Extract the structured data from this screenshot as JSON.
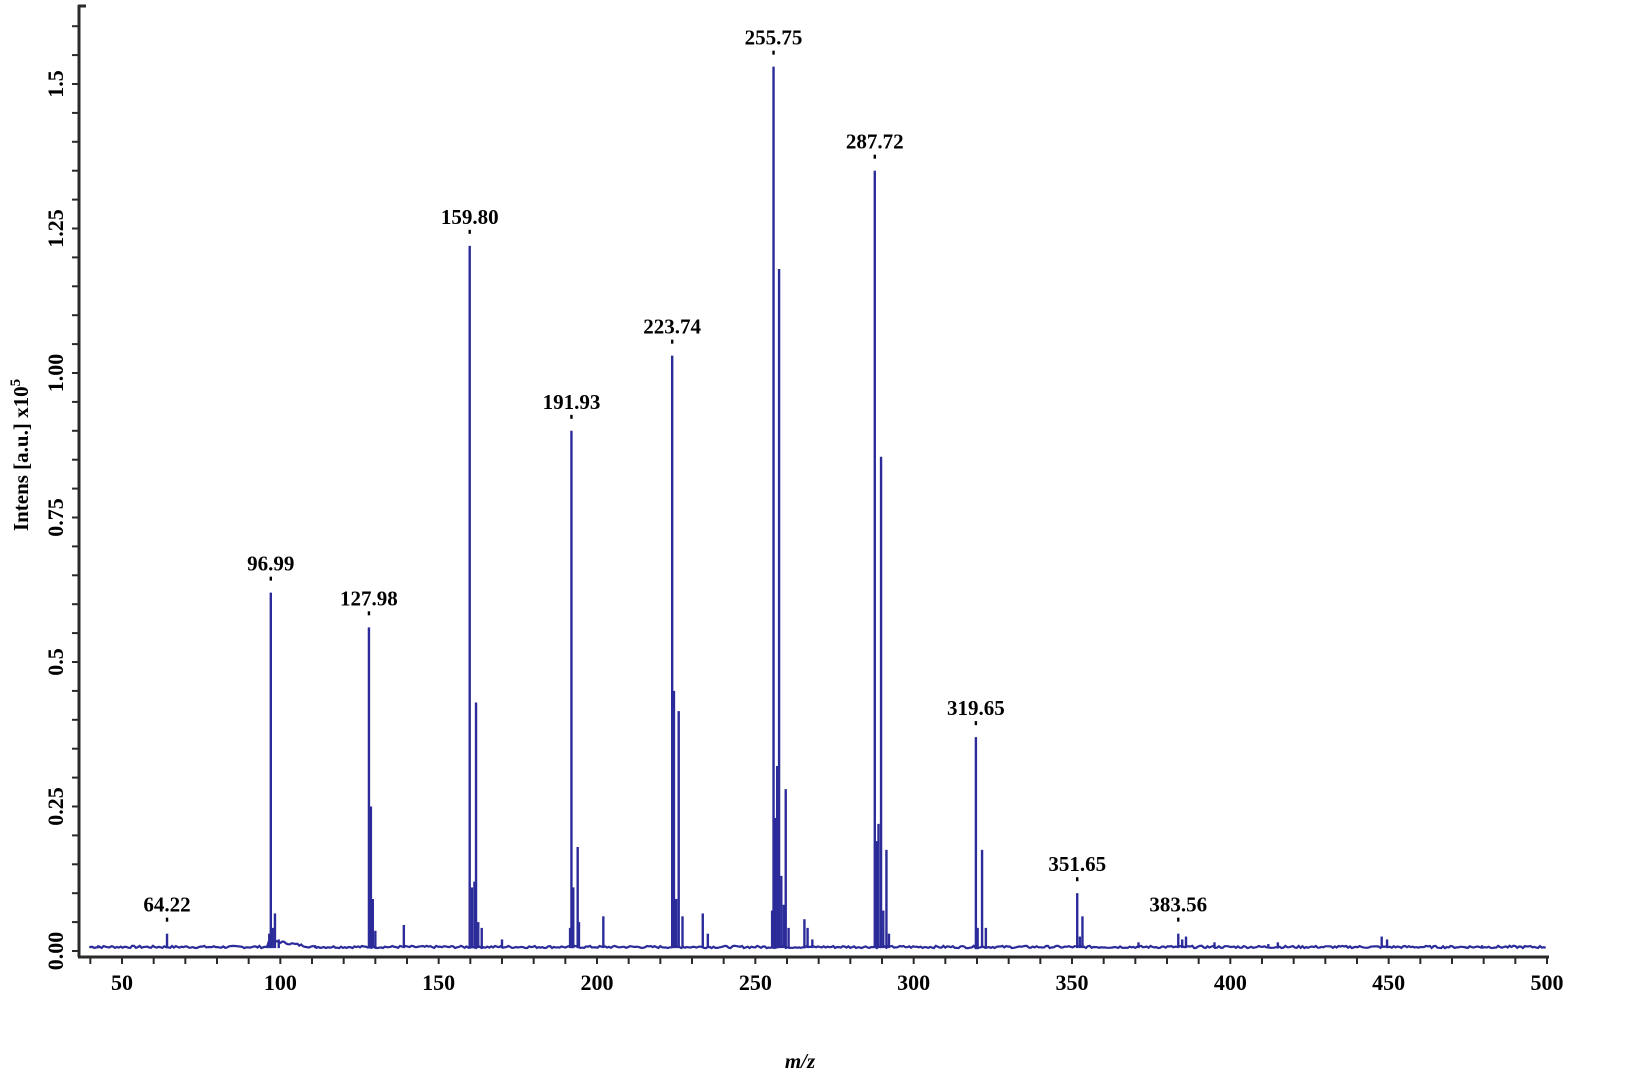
{
  "chart_data": {
    "type": "line",
    "subtype": "mass-spectrum-stick",
    "title": "",
    "xlabel": "m/z",
    "ylabel": "Intens [a.u.] x10",
    "ylabel_superscript": "5",
    "xlim": [
      35.5,
      500
    ],
    "ylim": [
      0,
      1.65
    ],
    "grid": false,
    "legend": null,
    "x_ticks": [
      50,
      100,
      150,
      200,
      250,
      300,
      350,
      400,
      450,
      500
    ],
    "x_tick_labels": [
      "50",
      "100",
      "150",
      "200",
      "250",
      "300",
      "350",
      "400",
      "450",
      "500"
    ],
    "x_minor_step": 10,
    "y_ticks": [
      0,
      0.25,
      0.5,
      0.75,
      1.0,
      1.25,
      1.5
    ],
    "y_tick_labels": [
      "0.00",
      "0.25",
      "0.5",
      "0.75",
      "1.00",
      "1.25",
      "1.5"
    ],
    "y_minor_step": 0.05,
    "series_color": "#2b2b9a",
    "baseline": 0.005,
    "labeled_peaks": [
      {
        "mz": 64.22,
        "label": "64.22",
        "intensity": 0.03
      },
      {
        "mz": 96.99,
        "label": "96.99",
        "intensity": 0.62
      },
      {
        "mz": 127.98,
        "label": "127.98",
        "intensity": 0.56
      },
      {
        "mz": 159.8,
        "label": "159.80",
        "intensity": 1.22
      },
      {
        "mz": 191.93,
        "label": "191.93",
        "intensity": 0.9
      },
      {
        "mz": 223.74,
        "label": "223.74",
        "intensity": 1.03
      },
      {
        "mz": 255.75,
        "label": "255.75",
        "intensity": 1.53
      },
      {
        "mz": 287.72,
        "label": "287.72",
        "intensity": 1.35
      },
      {
        "mz": 319.65,
        "label": "319.65",
        "intensity": 0.37
      },
      {
        "mz": 351.65,
        "label": "351.65",
        "intensity": 0.1
      },
      {
        "mz": 383.56,
        "label": "383.56",
        "intensity": 0.03
      }
    ],
    "other_peaks": [
      {
        "mz": 40.5,
        "intensity": 0.008
      },
      {
        "mz": 42.5,
        "intensity": 0.01
      },
      {
        "mz": 96.5,
        "intensity": 0.03
      },
      {
        "mz": 97.6,
        "intensity": 0.04
      },
      {
        "mz": 98.3,
        "intensity": 0.065
      },
      {
        "mz": 99.5,
        "intensity": 0.02
      },
      {
        "mz": 111,
        "intensity": 0.01
      },
      {
        "mz": 128.6,
        "intensity": 0.25
      },
      {
        "mz": 129.2,
        "intensity": 0.09
      },
      {
        "mz": 130.0,
        "intensity": 0.035
      },
      {
        "mz": 139.0,
        "intensity": 0.045
      },
      {
        "mz": 160.5,
        "intensity": 0.11
      },
      {
        "mz": 161.3,
        "intensity": 0.12
      },
      {
        "mz": 161.8,
        "intensity": 0.43
      },
      {
        "mz": 162.5,
        "intensity": 0.05
      },
      {
        "mz": 163.6,
        "intensity": 0.04
      },
      {
        "mz": 170.0,
        "intensity": 0.02
      },
      {
        "mz": 191.5,
        "intensity": 0.04
      },
      {
        "mz": 192.5,
        "intensity": 0.11
      },
      {
        "mz": 193.9,
        "intensity": 0.18
      },
      {
        "mz": 194.3,
        "intensity": 0.05
      },
      {
        "mz": 202.0,
        "intensity": 0.06
      },
      {
        "mz": 224.3,
        "intensity": 0.45
      },
      {
        "mz": 225.0,
        "intensity": 0.09
      },
      {
        "mz": 225.8,
        "intensity": 0.415
      },
      {
        "mz": 227.0,
        "intensity": 0.06
      },
      {
        "mz": 233.4,
        "intensity": 0.065
      },
      {
        "mz": 235.0,
        "intensity": 0.03
      },
      {
        "mz": 255.3,
        "intensity": 0.07
      },
      {
        "mz": 256.4,
        "intensity": 0.23
      },
      {
        "mz": 256.9,
        "intensity": 0.32
      },
      {
        "mz": 257.5,
        "intensity": 1.18
      },
      {
        "mz": 258.2,
        "intensity": 0.13
      },
      {
        "mz": 259.0,
        "intensity": 0.08
      },
      {
        "mz": 259.6,
        "intensity": 0.28
      },
      {
        "mz": 260.5,
        "intensity": 0.04
      },
      {
        "mz": 265.5,
        "intensity": 0.055
      },
      {
        "mz": 266.5,
        "intensity": 0.04
      },
      {
        "mz": 268.0,
        "intensity": 0.02
      },
      {
        "mz": 288.3,
        "intensity": 0.19
      },
      {
        "mz": 288.9,
        "intensity": 0.22
      },
      {
        "mz": 289.7,
        "intensity": 0.855
      },
      {
        "mz": 290.4,
        "intensity": 0.07
      },
      {
        "mz": 291.4,
        "intensity": 0.175
      },
      {
        "mz": 292.2,
        "intensity": 0.03
      },
      {
        "mz": 320.2,
        "intensity": 0.04
      },
      {
        "mz": 321.6,
        "intensity": 0.175
      },
      {
        "mz": 322.8,
        "intensity": 0.04
      },
      {
        "mz": 352.5,
        "intensity": 0.025
      },
      {
        "mz": 353.3,
        "intensity": 0.06
      },
      {
        "mz": 371.0,
        "intensity": 0.015
      },
      {
        "mz": 384.8,
        "intensity": 0.02
      },
      {
        "mz": 386.0,
        "intensity": 0.025
      },
      {
        "mz": 395.0,
        "intensity": 0.015
      },
      {
        "mz": 412.0,
        "intensity": 0.012
      },
      {
        "mz": 415.0,
        "intensity": 0.015
      },
      {
        "mz": 447.8,
        "intensity": 0.025
      },
      {
        "mz": 449.5,
        "intensity": 0.02
      },
      {
        "mz": 479.5,
        "intensity": 0.01
      }
    ]
  }
}
